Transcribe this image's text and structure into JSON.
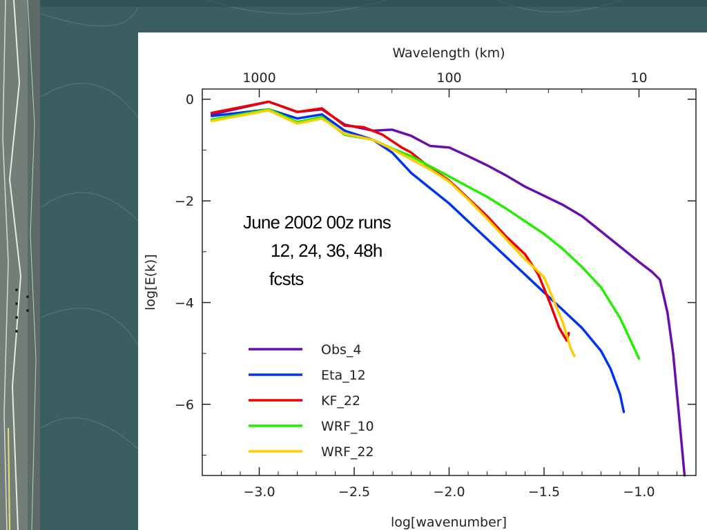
{
  "theme": {
    "background": "#3b5e60",
    "panel": "#ffffff"
  },
  "annotation": {
    "line1": "June 2002 00z runs",
    "line2": "12, 24, 36, 48h",
    "line3": "fcsts"
  },
  "chart_data": {
    "type": "line",
    "xlabel": "log[wavenumber]",
    "ylabel": "log[E(k)]",
    "top_axis_label": "Wavelength (km)",
    "top_ticks": [
      "1000",
      "100",
      "10"
    ],
    "xlim": [
      -3.3,
      -0.7
    ],
    "ylim": [
      -7.4,
      0.2
    ],
    "x_ticks": [
      -3.0,
      -2.5,
      -2.0,
      -1.5,
      -1.0
    ],
    "x_tick_labels": [
      "−3.0",
      "−2.5",
      "−2.0",
      "−1.5",
      "−1.0"
    ],
    "y_ticks": [
      0,
      -2,
      -4,
      -6
    ],
    "y_tick_labels": [
      "0",
      "−2",
      "−4",
      "−6"
    ],
    "legend_position": "lower-left",
    "series": [
      {
        "name": "Obs_4",
        "color": "#6a0dad",
        "points": [
          [
            -3.25,
            -0.3
          ],
          [
            -2.95,
            -0.05
          ],
          [
            -2.8,
            -0.25
          ],
          [
            -2.67,
            -0.2
          ],
          [
            -2.55,
            -0.5
          ],
          [
            -2.4,
            -0.62
          ],
          [
            -2.3,
            -0.6
          ],
          [
            -2.2,
            -0.72
          ],
          [
            -2.1,
            -0.92
          ],
          [
            -2.0,
            -0.95
          ],
          [
            -1.9,
            -1.12
          ],
          [
            -1.8,
            -1.3
          ],
          [
            -1.7,
            -1.5
          ],
          [
            -1.6,
            -1.72
          ],
          [
            -1.5,
            -1.9
          ],
          [
            -1.4,
            -2.08
          ],
          [
            -1.3,
            -2.3
          ],
          [
            -1.2,
            -2.6
          ],
          [
            -1.1,
            -2.9
          ],
          [
            -1.0,
            -3.2
          ],
          [
            -0.93,
            -3.4
          ],
          [
            -0.89,
            -3.55
          ],
          [
            -0.85,
            -4.2
          ],
          [
            -0.82,
            -5.0
          ],
          [
            -0.79,
            -6.2
          ],
          [
            -0.76,
            -7.4
          ]
        ]
      },
      {
        "name": "Eta_12",
        "color": "#0033ee",
        "points": [
          [
            -3.25,
            -0.33
          ],
          [
            -2.95,
            -0.2
          ],
          [
            -2.8,
            -0.38
          ],
          [
            -2.67,
            -0.3
          ],
          [
            -2.55,
            -0.62
          ],
          [
            -2.4,
            -0.8
          ],
          [
            -2.3,
            -1.05
          ],
          [
            -2.2,
            -1.45
          ],
          [
            -2.1,
            -1.75
          ],
          [
            -2.0,
            -2.05
          ],
          [
            -1.9,
            -2.4
          ],
          [
            -1.8,
            -2.75
          ],
          [
            -1.7,
            -3.1
          ],
          [
            -1.6,
            -3.45
          ],
          [
            -1.5,
            -3.8
          ],
          [
            -1.4,
            -4.15
          ],
          [
            -1.3,
            -4.5
          ],
          [
            -1.2,
            -4.95
          ],
          [
            -1.15,
            -5.3
          ],
          [
            -1.1,
            -5.8
          ],
          [
            -1.08,
            -6.15
          ]
        ]
      },
      {
        "name": "KF_22",
        "color": "#ee0000",
        "points": [
          [
            -3.25,
            -0.27
          ],
          [
            -2.95,
            -0.05
          ],
          [
            -2.8,
            -0.25
          ],
          [
            -2.67,
            -0.18
          ],
          [
            -2.55,
            -0.52
          ],
          [
            -2.45,
            -0.55
          ],
          [
            -2.35,
            -0.7
          ],
          [
            -2.25,
            -0.95
          ],
          [
            -2.2,
            -1.05
          ],
          [
            -2.1,
            -1.35
          ],
          [
            -2.0,
            -1.6
          ],
          [
            -1.9,
            -1.95
          ],
          [
            -1.8,
            -2.3
          ],
          [
            -1.7,
            -2.7
          ],
          [
            -1.6,
            -3.05
          ],
          [
            -1.53,
            -3.45
          ],
          [
            -1.47,
            -4.0
          ],
          [
            -1.42,
            -4.5
          ],
          [
            -1.38,
            -4.75
          ],
          [
            -1.37,
            -4.6
          ]
        ]
      },
      {
        "name": "WRF_10",
        "color": "#22ee00",
        "points": [
          [
            -3.25,
            -0.4
          ],
          [
            -2.95,
            -0.2
          ],
          [
            -2.8,
            -0.45
          ],
          [
            -2.67,
            -0.35
          ],
          [
            -2.55,
            -0.7
          ],
          [
            -2.4,
            -0.8
          ],
          [
            -2.3,
            -0.97
          ],
          [
            -2.2,
            -1.12
          ],
          [
            -2.1,
            -1.32
          ],
          [
            -2.0,
            -1.52
          ],
          [
            -1.9,
            -1.72
          ],
          [
            -1.8,
            -1.92
          ],
          [
            -1.7,
            -2.15
          ],
          [
            -1.6,
            -2.4
          ],
          [
            -1.5,
            -2.65
          ],
          [
            -1.4,
            -2.95
          ],
          [
            -1.3,
            -3.3
          ],
          [
            -1.2,
            -3.7
          ],
          [
            -1.1,
            -4.3
          ],
          [
            -1.05,
            -4.7
          ],
          [
            -1.0,
            -5.1
          ]
        ]
      },
      {
        "name": "WRF_22",
        "color": "#ffcc00",
        "points": [
          [
            -3.25,
            -0.43
          ],
          [
            -2.95,
            -0.22
          ],
          [
            -2.8,
            -0.48
          ],
          [
            -2.67,
            -0.38
          ],
          [
            -2.55,
            -0.68
          ],
          [
            -2.4,
            -0.8
          ],
          [
            -2.3,
            -0.98
          ],
          [
            -2.2,
            -1.18
          ],
          [
            -2.1,
            -1.38
          ],
          [
            -2.0,
            -1.62
          ],
          [
            -1.9,
            -1.97
          ],
          [
            -1.8,
            -2.35
          ],
          [
            -1.7,
            -2.75
          ],
          [
            -1.6,
            -3.15
          ],
          [
            -1.5,
            -3.5
          ],
          [
            -1.45,
            -3.95
          ],
          [
            -1.4,
            -4.4
          ],
          [
            -1.36,
            -4.9
          ],
          [
            -1.34,
            -5.05
          ]
        ]
      }
    ]
  }
}
